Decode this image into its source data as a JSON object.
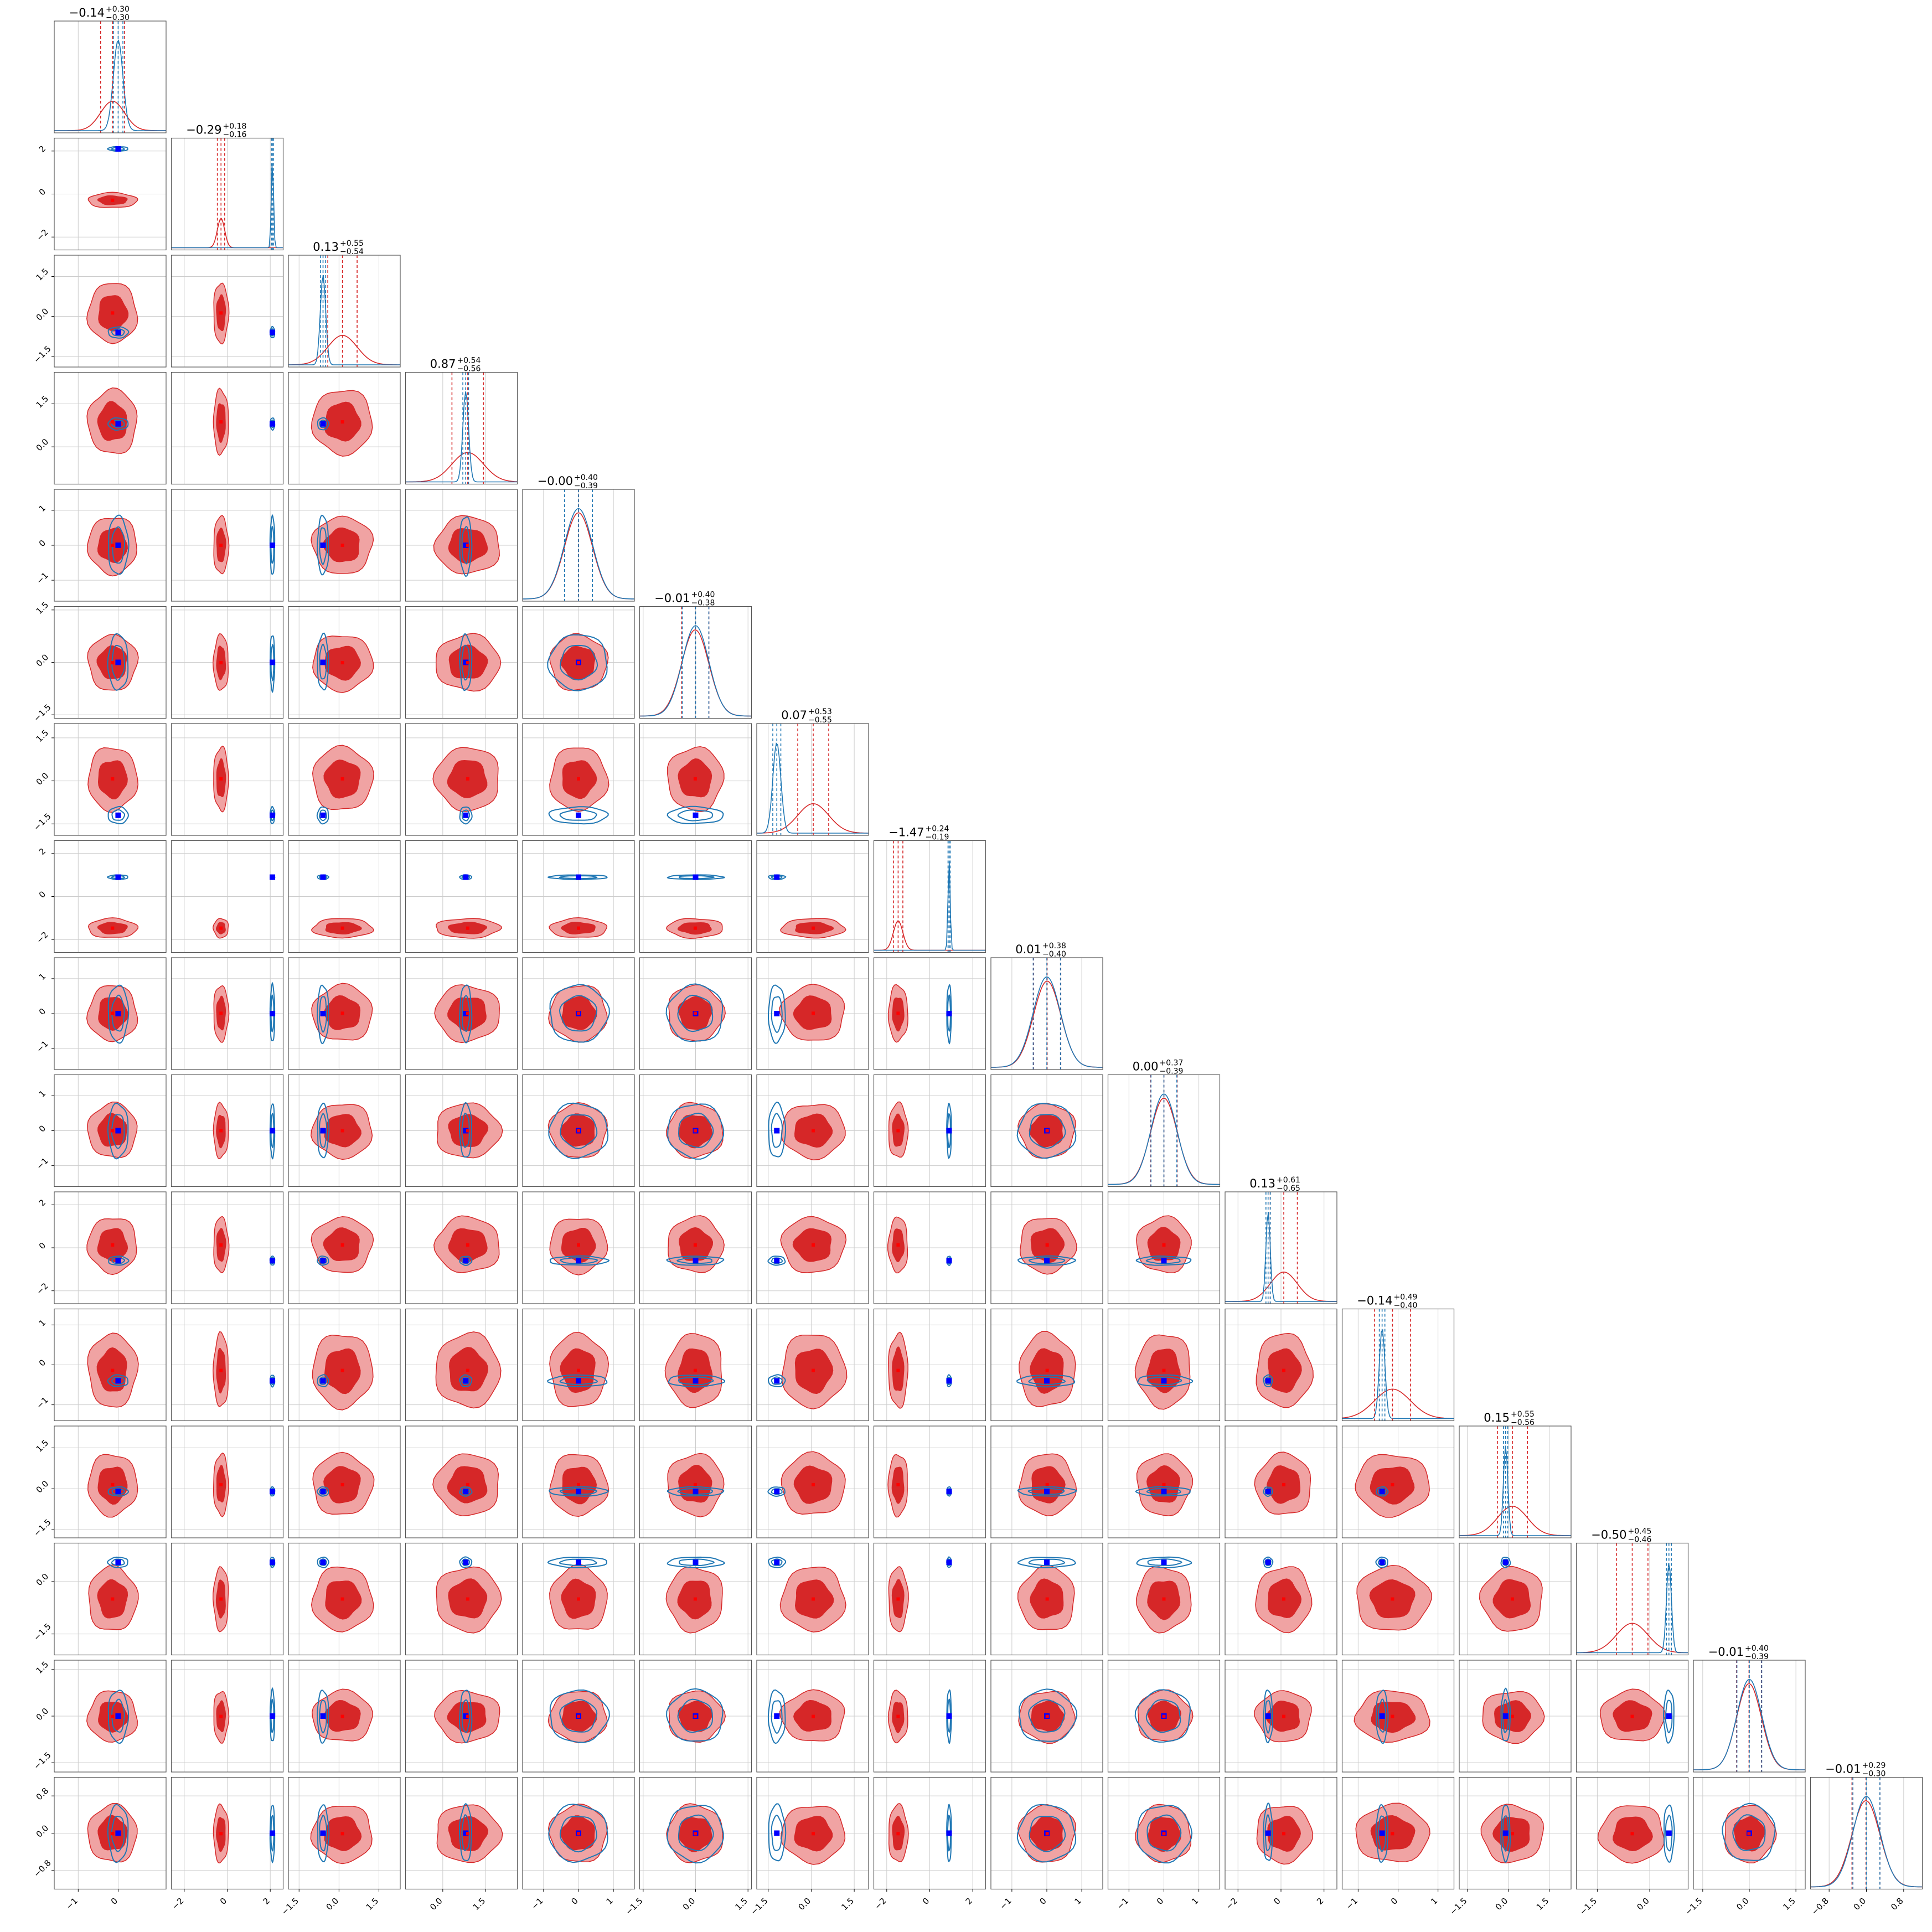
{
  "chart_data": {
    "type": "corner",
    "n_params": 16,
    "grid": true,
    "colors": {
      "red_fill": "#d62728",
      "red_light": "#f0a3a3",
      "red_line": "#d62728",
      "blue_line": "#1f77b4",
      "blue_marker": "#0000ff",
      "red_marker": "#ff0000",
      "frame": "#555555",
      "grid": "#cccccc"
    },
    "titles": [
      {
        "median": "−0.14",
        "plus": "+0.30",
        "minus": "−0.30"
      },
      {
        "median": "−0.29",
        "plus": "+0.18",
        "minus": "−0.16"
      },
      {
        "median": "0.13",
        "plus": "+0.55",
        "minus": "−0.54"
      },
      {
        "median": "0.87",
        "plus": "+0.54",
        "minus": "−0.56"
      },
      {
        "median": "−0.00",
        "plus": "+0.40",
        "minus": "−0.39"
      },
      {
        "median": "−0.01",
        "plus": "+0.40",
        "minus": "−0.38"
      },
      {
        "median": "0.07",
        "plus": "+0.53",
        "minus": "−0.55"
      },
      {
        "median": "−1.47",
        "plus": "+0.24",
        "minus": "−0.19"
      },
      {
        "median": "0.01",
        "plus": "+0.38",
        "minus": "−0.40"
      },
      {
        "median": "0.00",
        "plus": "+0.37",
        "minus": "−0.39"
      },
      {
        "median": "0.13",
        "plus": "+0.61",
        "minus": "−0.65"
      },
      {
        "median": "−0.14",
        "plus": "+0.49",
        "minus": "−0.40"
      },
      {
        "median": "0.15",
        "plus": "+0.55",
        "minus": "−0.56"
      },
      {
        "median": "−0.50",
        "plus": "+0.45",
        "minus": "−0.46"
      },
      {
        "median": "−0.01",
        "plus": "+0.40",
        "minus": "−0.39"
      },
      {
        "median": "−0.01",
        "plus": "+0.29",
        "minus": "−0.30"
      }
    ],
    "y_ticks": [
      null,
      [
        "2",
        "0",
        "−2"
      ],
      [
        "1.5",
        "0.0",
        "−1.5"
      ],
      [
        "1.5",
        "0.0"
      ],
      [
        "1",
        "0",
        "−1"
      ],
      [
        "1.5",
        "0.0",
        "−1.5"
      ],
      [
        "1.5",
        "0.0",
        "−1.5"
      ],
      [
        "2",
        "0",
        "−2"
      ],
      [
        "1",
        "0",
        "−1"
      ],
      [
        "1",
        "0",
        "−1"
      ],
      [
        "2",
        "0",
        "−2"
      ],
      [
        "1",
        "0",
        "−1"
      ],
      [
        "1.5",
        "0.0",
        "−1.5"
      ],
      [
        "0.0",
        "−1.5"
      ],
      [
        "1.5",
        "0.0",
        "−1.5"
      ],
      [
        "0.8",
        "0.0",
        "−0.8"
      ]
    ],
    "x_ticks": [
      [
        "−1",
        "0"
      ],
      [
        "−2",
        "0",
        "2"
      ],
      [
        "−1.5",
        "0.0",
        "1.5"
      ],
      [
        "0.0",
        "1.5"
      ],
      [
        "−1",
        "0",
        "1"
      ],
      [
        "−1.5",
        "0.0",
        "1.5"
      ],
      [
        "−1.5",
        "0.0",
        "1.5"
      ],
      [
        "−2",
        "0",
        "2"
      ],
      [
        "−1",
        "0",
        "1"
      ],
      [
        "−1",
        "0",
        "1"
      ],
      [
        "−2",
        "0",
        "2"
      ],
      [
        "−1",
        "0",
        "1"
      ],
      [
        "−1.5",
        "0.0",
        "1.5"
      ],
      [
        "−1.5",
        "0.0"
      ],
      [
        "−1.5",
        "0.0",
        "1.5"
      ],
      [
        "−0.8",
        "0.0",
        "0.8"
      ]
    ],
    "red_center": [
      -0.14,
      -0.29,
      0.13,
      0.87,
      0.0,
      -0.01,
      0.07,
      -1.47,
      0.01,
      0.0,
      0.13,
      -0.14,
      0.15,
      -0.5,
      -0.01,
      -0.01
    ],
    "red_sigma": [
      0.3,
      0.17,
      0.55,
      0.55,
      0.4,
      0.39,
      0.54,
      0.22,
      0.39,
      0.38,
      0.63,
      0.45,
      0.55,
      0.45,
      0.4,
      0.3
    ],
    "blue_center": [
      0.0,
      2.1,
      -0.6,
      0.8,
      0.0,
      0.0,
      -1.2,
      0.9,
      0.0,
      0.0,
      -0.6,
      -0.4,
      -0.1,
      0.55,
      0.0,
      0.0
    ],
    "blue_sigma": [
      0.12,
      0.05,
      0.1,
      0.1,
      0.4,
      0.38,
      0.14,
      0.05,
      0.39,
      0.37,
      0.1,
      0.07,
      0.08,
      0.07,
      0.4,
      0.29
    ],
    "range_min": [
      -1.6,
      -2.6,
      -1.9,
      -1.3,
      -1.6,
      -1.6,
      -1.9,
      -2.6,
      -1.6,
      -1.6,
      -2.6,
      -1.4,
      -1.8,
      -2.1,
      -1.8,
      -1.2
    ],
    "range_max": [
      1.2,
      2.6,
      2.3,
      2.6,
      1.6,
      1.6,
      2.0,
      2.6,
      1.6,
      1.6,
      2.6,
      1.4,
      2.3,
      1.1,
      1.8,
      1.2
    ]
  }
}
